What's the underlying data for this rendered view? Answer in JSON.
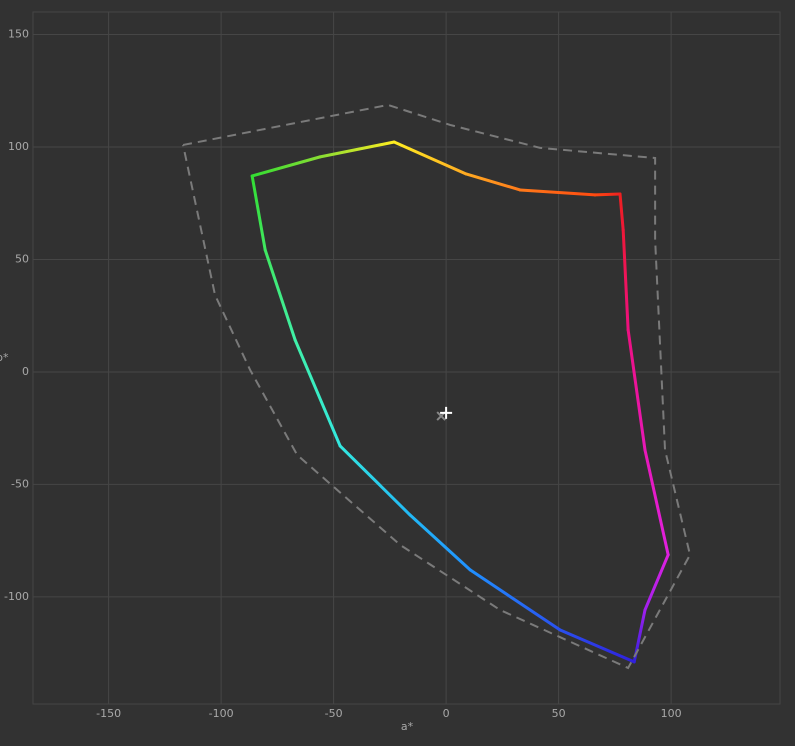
{
  "chart_data": {
    "type": "line",
    "x_label": "a*",
    "y_label": "b*",
    "xlim": [
      -183.6,
      148.4
    ],
    "ylim": [
      -147.6,
      160
    ],
    "xticks": [
      -150,
      -100,
      -50,
      0,
      50,
      100
    ],
    "yticks": [
      -100,
      -50,
      0,
      50,
      100,
      150
    ],
    "grid": true,
    "series": [
      {
        "style": "solid",
        "x": [
          -23.1,
          8.9,
          32.9,
          66.2,
          77.3,
          78.7,
          80.9,
          88.4,
          98.7,
          88.4,
          83.6,
          50.7,
          10.7,
          -16,
          -47.1,
          -67.1,
          -80.4,
          -86.2,
          -56,
          -23.1
        ],
        "values": [
          102.2,
          88,
          80.9,
          78.7,
          79.1,
          63.1,
          18.7,
          -34.7,
          -81.3,
          -105.8,
          -128.9,
          -114.7,
          -88,
          -63.6,
          -32.9,
          14.2,
          54.2,
          87.1,
          95.6,
          102.2
        ],
        "colors": [
          "#ffee22",
          "#ffaa22",
          "#ff7a1a",
          "#ff4a10",
          "#ee2020",
          "#ee1838",
          "#ee1080",
          "#e818b8",
          "#e020e0",
          "#a020ee",
          "#3020dd",
          "#2a50ee",
          "#2090ff",
          "#22b8f5",
          "#33e8e0",
          "#40f0a8",
          "#40e860",
          "#33dd33",
          "#88dd33",
          "#ffee22"
        ]
      },
      {
        "style": "dashed",
        "color": "#7a7a7a",
        "x": [
          -116.9,
          -25.8,
          1.8,
          41.8,
          92.9,
          92.9,
          97.3,
          108.4,
          80.9,
          24,
          -20.4,
          -66.2,
          -87.1,
          -102.7,
          -116.9
        ],
        "values": [
          100.9,
          118.7,
          109.8,
          99.6,
          95.1,
          58.7,
          -34.7,
          -81.3,
          -131.6,
          -105.8,
          -76.9,
          -36.9,
          0.9,
          34.2,
          100.9
        ]
      },
      {
        "style": "marker",
        "marker": "x",
        "color": "#888888",
        "x": [
          -2.2
        ],
        "values": [
          -19.6
        ]
      },
      {
        "style": "marker",
        "marker": "+",
        "color": "#ffffff",
        "x": [
          0
        ],
        "values": [
          -18.2
        ]
      }
    ]
  }
}
